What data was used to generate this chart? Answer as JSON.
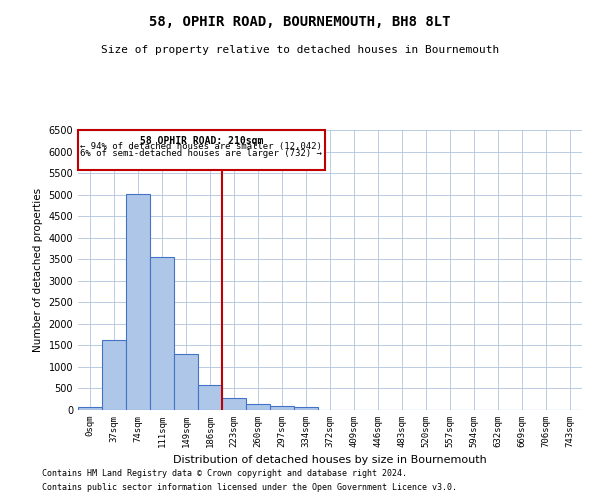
{
  "title": "58, OPHIR ROAD, BOURNEMOUTH, BH8 8LT",
  "subtitle": "Size of property relative to detached houses in Bournemouth",
  "xlabel": "Distribution of detached houses by size in Bournemouth",
  "ylabel": "Number of detached properties",
  "footnote1": "Contains HM Land Registry data © Crown copyright and database right 2024.",
  "footnote2": "Contains public sector information licensed under the Open Government Licence v3.0.",
  "bar_labels": [
    "0sqm",
    "37sqm",
    "74sqm",
    "111sqm",
    "149sqm",
    "186sqm",
    "223sqm",
    "260sqm",
    "297sqm",
    "334sqm",
    "372sqm",
    "409sqm",
    "446sqm",
    "483sqm",
    "520sqm",
    "557sqm",
    "594sqm",
    "632sqm",
    "669sqm",
    "706sqm",
    "743sqm"
  ],
  "bar_values": [
    70,
    1620,
    5020,
    3560,
    1290,
    580,
    290,
    150,
    100,
    60,
    0,
    0,
    0,
    0,
    0,
    0,
    0,
    0,
    0,
    0,
    0
  ],
  "bar_color": "#aec6e8",
  "bar_edge_color": "#4472c4",
  "vline_x": 5.5,
  "vline_color": "#c00000",
  "annotation_title": "58 OPHIR ROAD: 210sqm",
  "annotation_line1": "← 94% of detached houses are smaller (12,042)",
  "annotation_line2": "6% of semi-detached houses are larger (732) →",
  "annotation_box_color": "#c00000",
  "ylim": [
    0,
    6500
  ],
  "yticks": [
    0,
    500,
    1000,
    1500,
    2000,
    2500,
    3000,
    3500,
    4000,
    4500,
    5000,
    5500,
    6000,
    6500
  ],
  "background_color": "#ffffff",
  "grid_color": "#b0c4de",
  "fig_width": 6.0,
  "fig_height": 5.0,
  "dpi": 100
}
